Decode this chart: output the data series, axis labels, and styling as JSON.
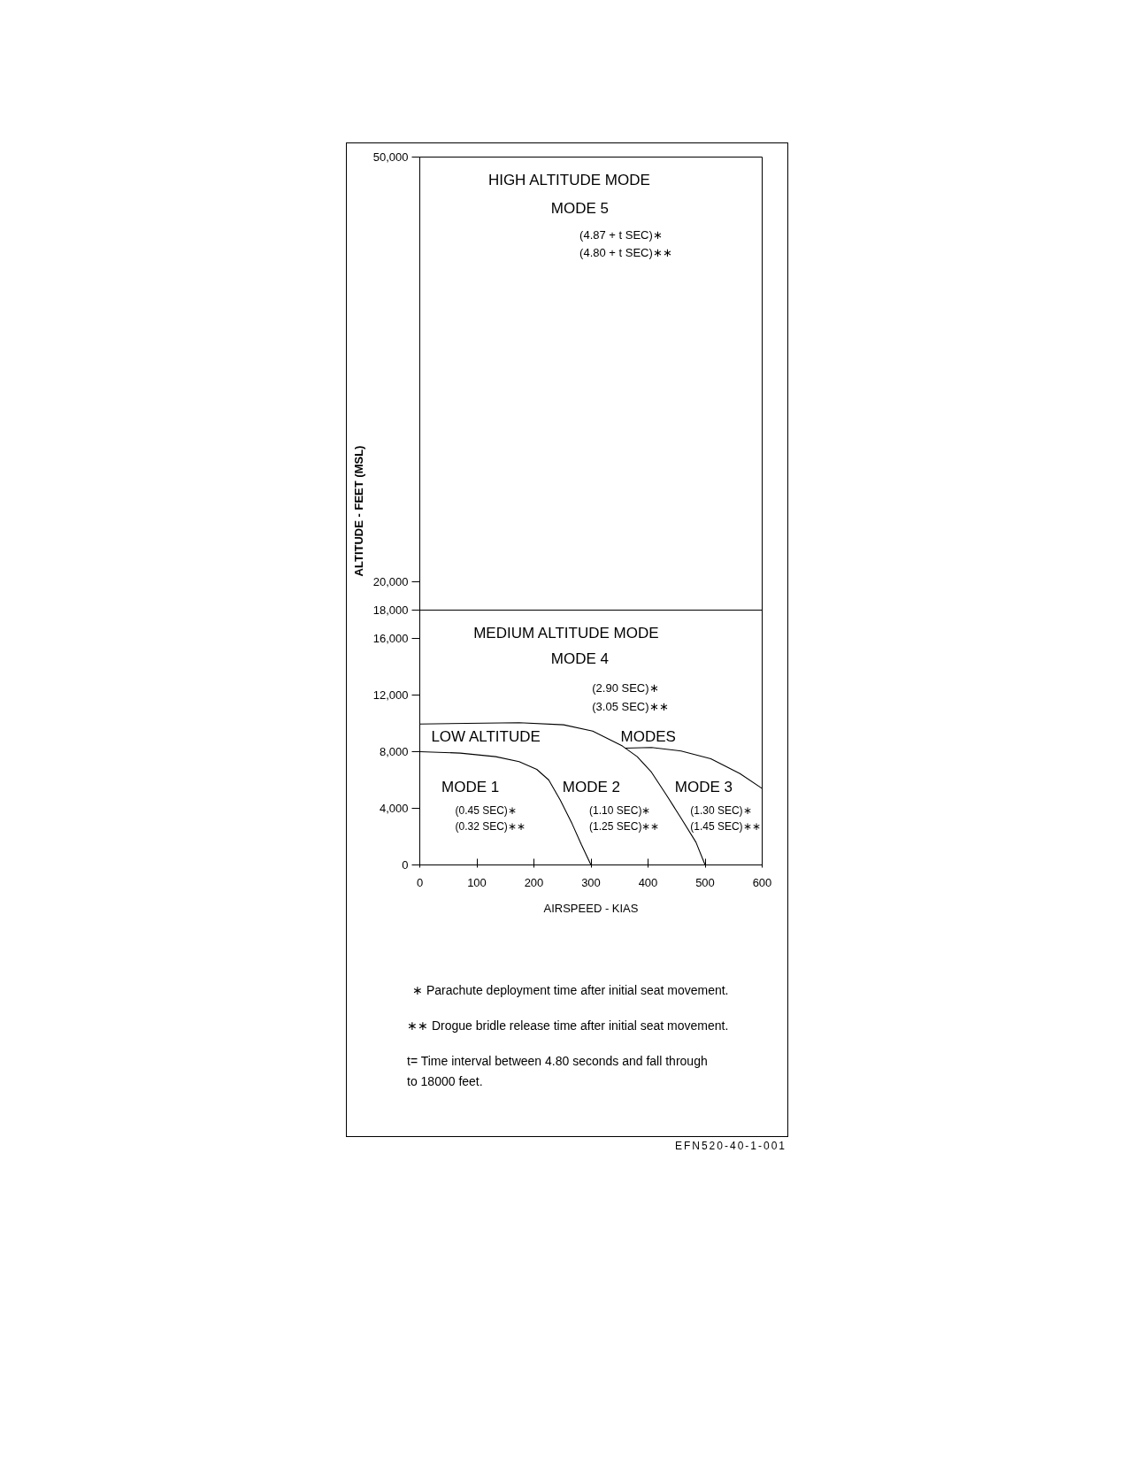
{
  "chart_data": {
    "type": "line",
    "xlabel": "AIRSPEED - KIAS",
    "ylabel": "ALTITUDE - FEET (MSL)",
    "xlim": [
      0,
      600
    ],
    "ylim": [
      0,
      50000
    ],
    "xticks": [
      0,
      100,
      200,
      300,
      400,
      500,
      600
    ],
    "yticks": [
      0,
      {
        "value": 4000,
        "label": "4,000"
      },
      {
        "value": 8000,
        "label": "8,000"
      },
      {
        "value": 12000,
        "label": "12,000"
      },
      {
        "value": 16000,
        "label": "16,000"
      },
      {
        "value": 18000,
        "label": "18,000"
      },
      {
        "value": 20000,
        "label": "20,000"
      },
      {
        "value": 50000,
        "label": "50,000"
      }
    ],
    "series": [
      {
        "color": "#000000",
        "x": [
          0,
          71,
          133,
          174,
          205,
          226,
          246,
          267,
          283,
          300
        ],
        "values": [
          8000,
          7900,
          7650,
          7300,
          6750,
          6000,
          4600,
          2900,
          1450,
          0
        ]
      },
      {
        "color": "#000000",
        "x": [
          0,
          174,
          252,
          303,
          355,
          381,
          406,
          432,
          458,
          484,
          500
        ],
        "values": [
          9950,
          10050,
          9900,
          9450,
          8400,
          7650,
          6550,
          4950,
          3300,
          1600,
          0
        ]
      },
      {
        "color": "#000000",
        "x": [
          360,
          406,
          458,
          510,
          561,
          600
        ],
        "values": [
          8250,
          8300,
          8050,
          7500,
          6450,
          5400
        ]
      }
    ],
    "ref_lines": [
      {
        "axis": "y",
        "value": 18000,
        "color": "#000000"
      }
    ],
    "annotations": [
      "HIGH ALTITUDE MODE",
      "MODE 5",
      "(4.87 + t SEC)∗",
      "(4.80 + t SEC)∗∗",
      "MEDIUM ALTITUDE MODE",
      "MODE 4",
      "(2.90 SEC)∗",
      "(3.05 SEC)∗∗",
      "LOW ALTITUDE",
      "MODES",
      "MODE 1",
      "(0.45 SEC)∗",
      "(0.32 SEC)∗∗",
      "MODE 2",
      "(1.10 SEC)∗",
      "(1.25 SEC)∗∗",
      "MODE 3",
      "(1.30 SEC)∗",
      "(1.45 SEC)∗∗",
      "∗ Parachute deployment time after initial seat movement.",
      "∗∗ Drogue bridle release time after initial seat movement.",
      "t= Time interval between 4.80 seconds and fall through\nto 18000 feet.",
      "EFN520-40-1-001"
    ]
  }
}
